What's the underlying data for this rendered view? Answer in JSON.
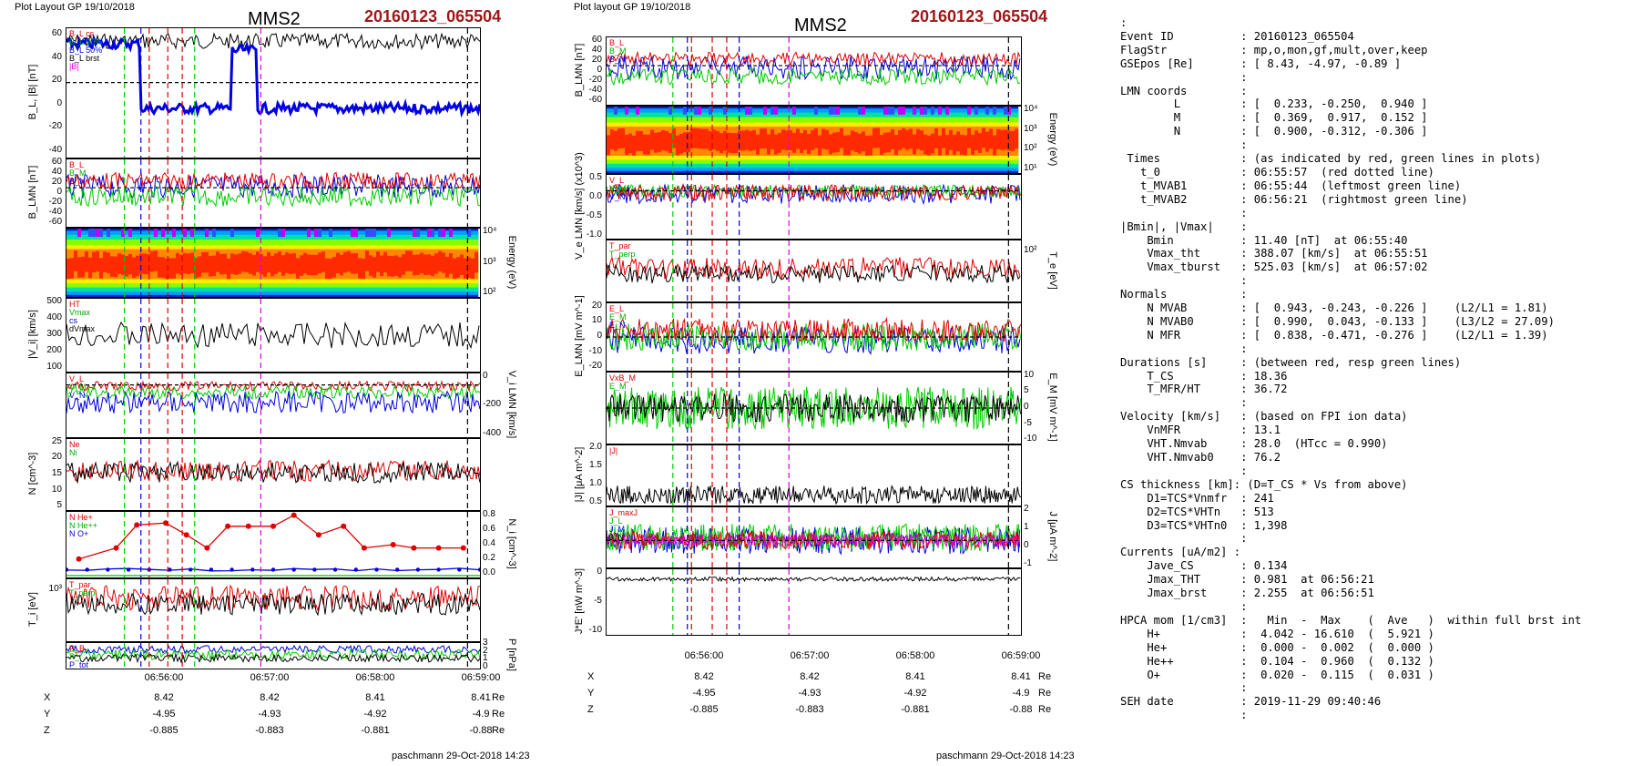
{
  "left": {
    "layout_label": "Plot Layout GP 19/10/2018",
    "sat": "MMS2",
    "event": "20160123_065504",
    "panels": [
      {
        "ylabel": "B_L, |B| [nT]",
        "yticks": [
          "60",
          "40",
          "20",
          "0",
          "-20",
          "-40"
        ],
        "legend": [
          "B_L cs",
          "B_L 90%",
          "B_L 50%",
          "B_L brst",
          "|B|"
        ]
      },
      {
        "ylabel": "B_LMN [nT]",
        "yticks": [
          "60",
          "40",
          "20",
          "0",
          "-20",
          "-40",
          "-60"
        ],
        "legend": [
          "B_L",
          "B_M",
          "B_N"
        ]
      },
      {
        "ylabel": "Energy (eV)",
        "yticks": [
          "10^4",
          "10^3",
          "10^2"
        ],
        "legend": []
      },
      {
        "ylabel": "|V_i| [km/s]",
        "yticks": [
          "500",
          "400",
          "300",
          "200",
          "100"
        ],
        "legend": [
          "HT",
          "Vmax",
          "cs",
          "dVmax"
        ]
      },
      {
        "ylabel": "V_i LMN [km/s]",
        "yticks": [
          "0",
          "-200",
          "-400"
        ],
        "legend": [
          "V_L",
          "V_M",
          "V_N"
        ]
      },
      {
        "ylabel": "N [cm^-3]",
        "yticks": [
          "25",
          "20",
          "15",
          "10",
          "5"
        ],
        "legend": [
          "Ne",
          "Ni"
        ]
      },
      {
        "ylabel": "N_i [cm^-3]",
        "yticks": [
          "0.8",
          "0.6",
          "0.4",
          "0.2",
          "0.0"
        ],
        "legend": [
          "N He+",
          "N He++",
          "N O+"
        ]
      },
      {
        "ylabel": "T_i [eV]",
        "yticks": [
          "10^3"
        ],
        "legend": [
          "T_par",
          "T_perp"
        ]
      },
      {
        "ylabel": "P [nPa]",
        "yticks": [
          "3",
          "2",
          "1",
          "0"
        ],
        "legend": [
          "P_B",
          "P_i",
          "P_tot"
        ]
      }
    ],
    "time_ticks": [
      "06:56:00",
      "06:57:00",
      "06:58:00",
      "06:59:00"
    ],
    "coords": {
      "X": [
        "8.42",
        "8.42",
        "8.41",
        "8.41"
      ],
      "Y": [
        "-4.95",
        "-4.93",
        "-4.92",
        "-4.9"
      ],
      "Z": [
        "-0.885",
        "-0.883",
        "-0.881",
        "-0.88"
      ],
      "unit": "Re"
    },
    "footer": "paschmann 29-Oct-2018 14:23"
  },
  "middle": {
    "layout_label": "Plot layout GP 19/10/2018",
    "sat": "MMS2",
    "event": "20160123_065504",
    "panels": [
      {
        "ylabel": "B_LMN [nT]",
        "yticks": [
          "60",
          "40",
          "20",
          "0",
          "-20",
          "-40",
          "-60"
        ],
        "legend": [
          "B_L",
          "B_M",
          "B_N"
        ]
      },
      {
        "ylabel": "Energy (eV)",
        "yticks": [
          "10^4",
          "10^3",
          "10^2",
          "10^1"
        ],
        "legend": []
      },
      {
        "ylabel": "V_e LMN [km/s] (x10^3)",
        "yticks": [
          "0.5",
          "0.0",
          "-0.5",
          "-1.0"
        ],
        "legend": [
          "V_L",
          "V_M",
          "V_N"
        ]
      },
      {
        "ylabel": "T_e [eV]",
        "yticks": [
          "10^2"
        ],
        "legend": [
          "T_par",
          "T_perp"
        ]
      },
      {
        "ylabel": "E_LMN [mV m^-1]",
        "yticks": [
          "20",
          "10",
          "0",
          "-10",
          "-20"
        ],
        "legend": [
          "E_L",
          "E_M",
          "E_N"
        ]
      },
      {
        "ylabel": "E_M [mV m^-1]",
        "yticks": [
          "10",
          "5",
          "0",
          "-5",
          "-10"
        ],
        "legend": [
          "VxB_M",
          "E_M"
        ]
      },
      {
        "ylabel": "|J| [μA m^-2]",
        "yticks": [
          "2.0",
          "1.5",
          "1.0",
          "0.5"
        ],
        "legend": [
          "|J|"
        ]
      },
      {
        "ylabel": "J [μA m^-2]",
        "yticks": [
          "2",
          "1",
          "0",
          "-1"
        ],
        "legend": [
          "J_maxJ",
          "J_L",
          "J_M",
          "J_N"
        ]
      },
      {
        "ylabel": "J*E' [nW m^-3]",
        "yticks": [
          "0",
          "-5",
          "-10"
        ],
        "legend": []
      }
    ],
    "time_ticks": [
      "06:56:00",
      "06:57:00",
      "06:58:00",
      "06:59:00"
    ],
    "coords": {
      "X": [
        "8.42",
        "8.42",
        "8.41",
        "8.41"
      ],
      "Y": [
        "-4.95",
        "-4.93",
        "-4.92",
        "-4.9"
      ],
      "Z": [
        "-0.885",
        "-0.883",
        "-0.881",
        "-0.88"
      ],
      "unit": "Re"
    },
    "footer": "paschmann 29-Oct-2018 14:23"
  },
  "info_lines": [
    ":",
    "Event ID          : 20160123_065504",
    "FlagStr           : mp,o,mon,gf,mult,over,keep",
    "GSEpos [Re]       : [ 8.43, -4.97, -0.89 ]",
    "                  :",
    "LMN coords        :",
    "        L         : [  0.233, -0.250,  0.940 ]",
    "        M         : [  0.369,  0.917,  0.152 ]",
    "        N         : [  0.900, -0.312, -0.306 ]",
    "                  :",
    " Times            : (as indicated by red, green lines in plots)",
    "   t_0            : 06:55:57  (red dotted line)",
    "   t_MVAB1        : 06:55:44  (leftmost green line)",
    "   t_MVAB2        : 06:56:21  (rightmost green line)",
    "                  :",
    "|Bmin|, |Vmax|    :",
    "    Bmin          : 11.40 [nT]  at 06:55:40",
    "    Vmax_tht      : 388.07 [km/s]  at 06:55:51",
    "    Vmax_tburst   : 525.03 [km/s]  at 06:57:02",
    "                  :",
    "Normals           :",
    "    N MVAB        : [  0.943, -0.243, -0.226 ]    (L2/L1 = 1.81)",
    "    N MVAB0       : [  0.990,  0.043, -0.133 ]    (L3/L2 = 27.09)",
    "    N MFR         : [  0.838, -0.471, -0.276 ]    (L2/L1 = 1.39)",
    "                  :",
    "Durations [s]     : (between red, resp green lines)",
    "    T_CS          : 18.36",
    "    T_MFR/HT      : 36.72",
    "                  :",
    "Velocity [km/s]   : (based on FPI ion data)",
    "    VnMFR         : 13.1",
    "    VHT.Nmvab     : 28.0  (HTcc = 0.990)",
    "    VHT.Nmvab0    : 76.2",
    "                  :",
    "CS thickness [km]: (D=T_CS * Vs from above)",
    "    D1=TCS*Vnmfr  : 241",
    "    D2=TCS*VHTn   : 513",
    "    D3=TCS*VHTn0  : 1,398",
    "                  :",
    "Currents [uA/m2] :",
    "    Jave_CS       : 0.134",
    "    Jmax_THT      : 0.981  at 06:56:21",
    "    Jmax_brst     : 2.255  at 06:56:51",
    "                  :",
    "HPCA mom [1/cm3]  :   Min  -  Max    (  Ave   )  within full brst int",
    "    H+            :  4.042 - 16.610  (  5.921 )",
    "    He+           :  0.000 -  0.002  (  0.000 )",
    "    He++          :  0.104 -  0.960  (  0.132 )",
    "    O+            :  0.020 -  0.115  (  0.031 )",
    "                  :",
    "SEH date          : 2019-11-29 09:40:46",
    "                  :"
  ],
  "colors": {
    "red": "#e00000",
    "green": "#00cc00",
    "blue": "#0000e0",
    "black": "#000000",
    "magenta": "#e000e0",
    "darkred": "#a01818"
  },
  "chart_data": [
    {
      "type": "line",
      "title": "MMS2",
      "xlabel": "",
      "x_ticks": [
        "06:56:00",
        "06:57:00",
        "06:58:00",
        "06:59:00"
      ],
      "panels": [
        "B_L, |B| [nT]",
        "B_LMN [nT]",
        "Energy (eV)",
        "|V_i| [km/s]",
        "V_i LMN [km/s]",
        "N [cm^-3]",
        "N_i [cm^-3]",
        "T_i [eV]",
        "P [nPa]"
      ]
    },
    {
      "type": "line",
      "title": "MMS2",
      "xlabel": "",
      "x_ticks": [
        "06:56:00",
        "06:57:00",
        "06:58:00",
        "06:59:00"
      ],
      "panels": [
        "B_LMN [nT]",
        "Energy (eV)",
        "V_e LMN [km/s]",
        "T_e [eV]",
        "E_LMN [mV m^-1]",
        "E_M [mV m^-1]",
        "|J| [μA m^-2]",
        "J [μA m^-2]",
        "J*E' [nW m^-3]"
      ]
    }
  ]
}
